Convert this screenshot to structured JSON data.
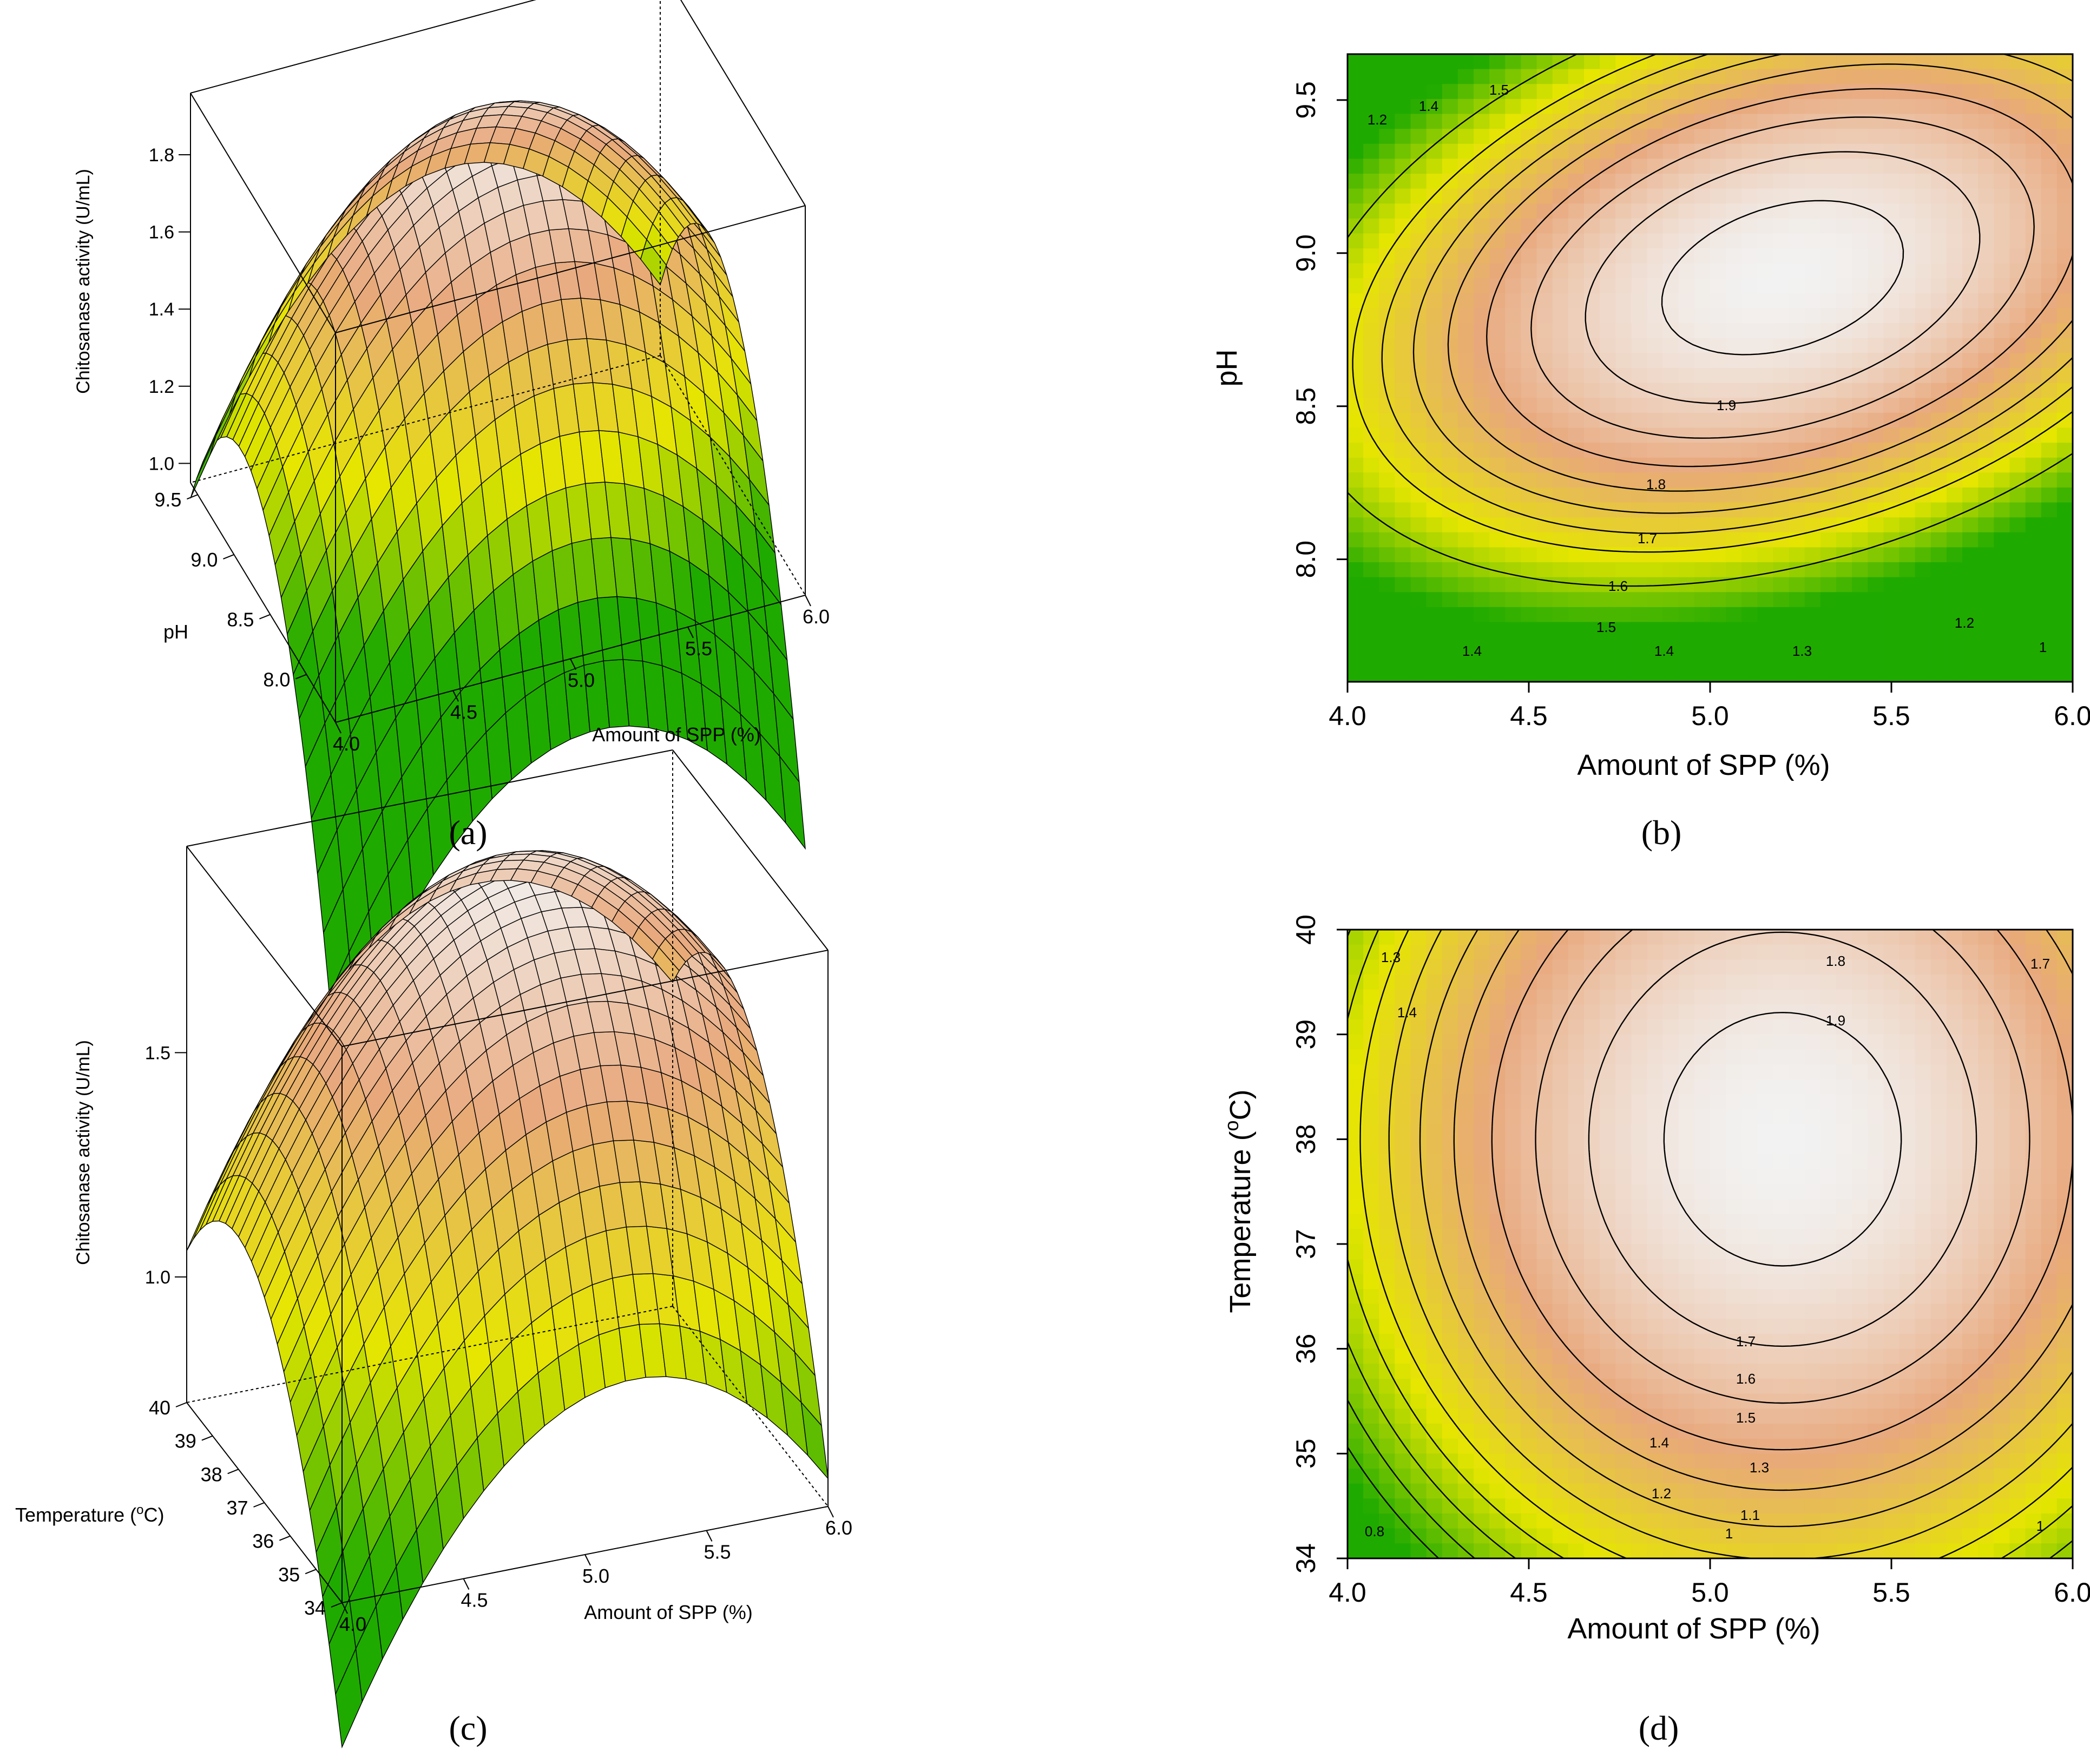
{
  "panel_labels": [
    "(a)",
    "(b)",
    "(c)",
    "(d)"
  ],
  "colors": {
    "low": "#1faa00",
    "mid": "#e6e600",
    "high": "#e8a87c",
    "peak": "#f2f2f2",
    "contour_line": "#000000"
  },
  "chart_data": [
    {
      "id": "a",
      "type": "surface3d",
      "zlabel": "Chitosanase activity (U/mL)",
      "xlabel": "Amount of SPP (%)",
      "ylabel": "pH",
      "x_ticks": [
        "4.0",
        "4.5",
        "5.0",
        "5.5",
        "6.0"
      ],
      "y_ticks": [
        "8.0",
        "8.5",
        "9.0",
        "9.5"
      ],
      "z_ticks": [
        "1.0",
        "1.2",
        "1.4",
        "1.6",
        "1.8"
      ],
      "xlim": [
        4.0,
        6.0
      ],
      "ylim": [
        7.6,
        9.6
      ],
      "zlim": [
        0.95,
        1.96
      ],
      "model": {
        "peak": 1.93,
        "x0": 5.1,
        "y0": 8.9,
        "ax": 0.56,
        "ay": 0.7,
        "bxy": 0.0
      }
    },
    {
      "id": "b",
      "type": "heatmap",
      "xlabel": "Amount of SPP (%)",
      "ylabel": "pH",
      "x_ticks": [
        "4.0",
        "4.5",
        "5.0",
        "5.5",
        "6.0"
      ],
      "y_ticks": [
        "8.0",
        "8.5",
        "9.0",
        "9.5"
      ],
      "xlim": [
        4.0,
        6.0
      ],
      "ylim": [
        7.6,
        9.65
      ],
      "contour_levels": [
        "1.9",
        "1.8",
        "1.7",
        "1.6",
        "1.5",
        "1.4",
        "1.3",
        "1.2",
        "1"
      ],
      "contour_labels_shown": [
        "1.9",
        "1.8",
        "1.7",
        "1.6",
        "1.5",
        "1.4",
        "1.4",
        "1.3",
        "1.2",
        "1",
        "1.2",
        "1.4",
        "1.5"
      ],
      "model": {
        "peak": 1.96,
        "x0": 5.2,
        "y0": 8.92,
        "ax": 0.6,
        "ay": 1.05,
        "bxy": 0.5
      }
    },
    {
      "id": "c",
      "type": "surface3d",
      "zlabel": "Chitosanase activity (U/mL)",
      "xlabel": "Amount of SPP (%)",
      "ylabel": "Temperature (°C)",
      "ylabel_base": "Temperature (",
      "ylabel_sup": "o",
      "ylabel_tail": "C)",
      "x_ticks": [
        "4.0",
        "4.5",
        "5.0",
        "5.5",
        "6.0"
      ],
      "y_ticks": [
        "34",
        "35",
        "36",
        "37",
        "38",
        "39",
        "40"
      ],
      "z_ticks": [
        "1.0",
        "1.5"
      ],
      "xlim": [
        4.0,
        6.0
      ],
      "ylim": [
        34,
        40
      ],
      "zlim": [
        0.72,
        1.96
      ],
      "model": {
        "peak": 1.93,
        "x0": 5.2,
        "y0": 38.1,
        "ax": 0.48,
        "ay": 0.05,
        "bxy": 0.0
      }
    },
    {
      "id": "d",
      "type": "heatmap",
      "xlabel": "Amount of SPP (%)",
      "ylabel": "Temperature (°C)",
      "ylabel_base": "Temperature (",
      "ylabel_sup": "o",
      "ylabel_tail": "C)",
      "x_ticks": [
        "4.0",
        "4.5",
        "5.0",
        "5.5",
        "6.0"
      ],
      "y_ticks": [
        "34",
        "35",
        "36",
        "37",
        "38",
        "39",
        "40"
      ],
      "xlim": [
        4.0,
        6.0
      ],
      "ylim": [
        34,
        40
      ],
      "contour_levels": [
        "1.9",
        "1.8",
        "1.7",
        "1.6",
        "1.5",
        "1.4",
        "1.3",
        "1.2",
        "1.1",
        "1",
        "0.9",
        "0.8"
      ],
      "contour_labels_shown": [
        "1.9",
        "1.8",
        "1.7",
        "1.7",
        "1.6",
        "1.5",
        "1.4",
        "1.3",
        "1.2",
        "1.1",
        "1",
        "1",
        "0.8",
        "1.3",
        "1.4"
      ],
      "model": {
        "peak": 1.96,
        "x0": 5.2,
        "y0": 38.0,
        "ax": 0.56,
        "ay": 0.041,
        "bxy": 0.0
      }
    }
  ]
}
